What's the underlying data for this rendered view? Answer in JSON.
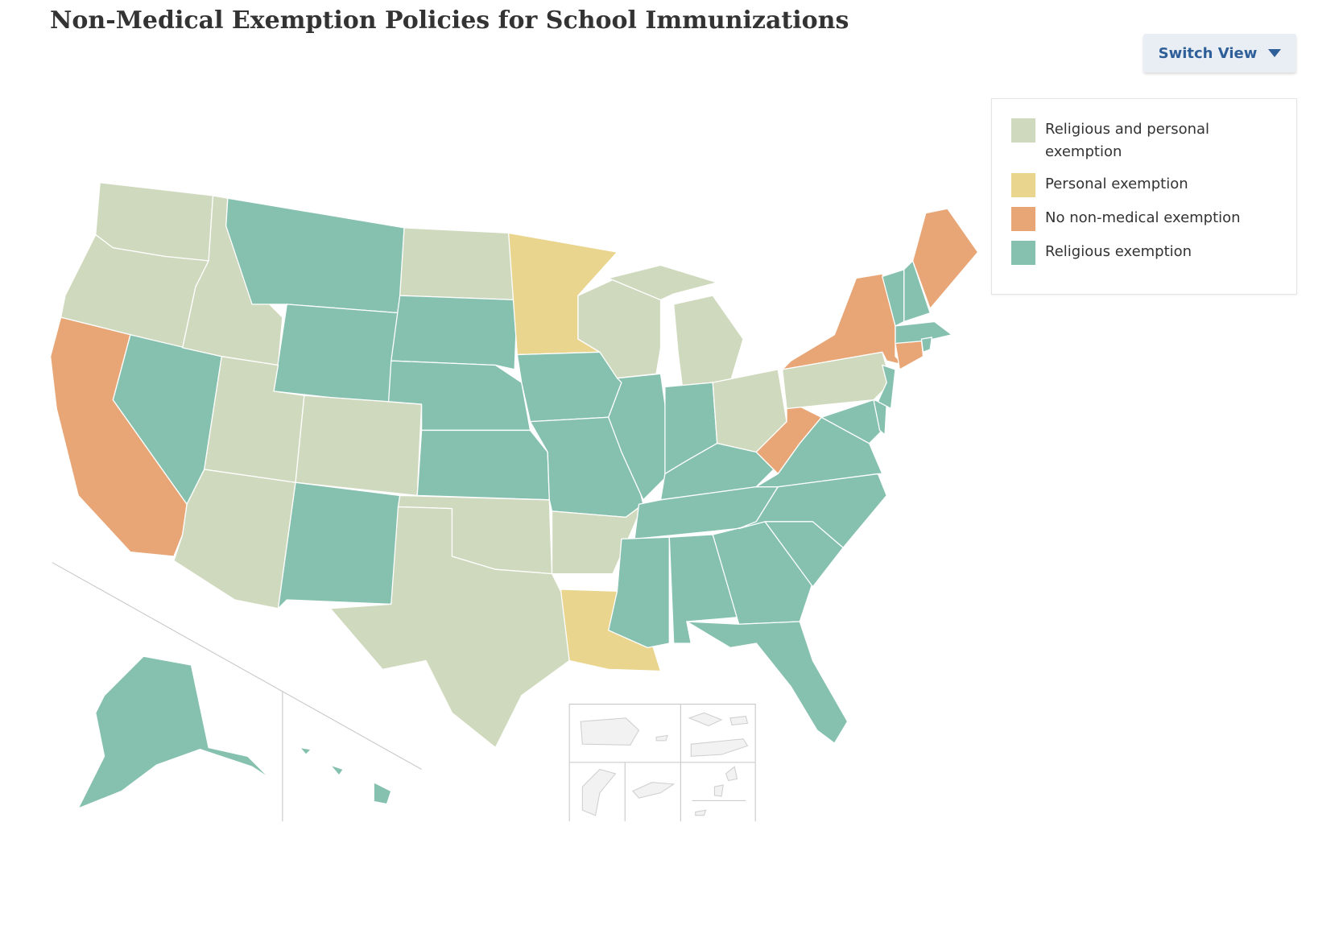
{
  "header": {
    "title": "Non-Medical Exemption Policies for School Immunizations",
    "button": "Switch View"
  },
  "legend": {
    "items": [
      {
        "label": "Religious and personal exemption",
        "color": "#cfd9bd"
      },
      {
        "label": "Personal exemption",
        "color": "#e9d58e"
      },
      {
        "label": "No non-medical exemption",
        "color": "#e8a677"
      },
      {
        "label": "Religious exemption",
        "color": "#85c1ae"
      }
    ]
  },
  "map": {
    "regions": [
      0,
      0,
      2,
      3,
      0,
      3,
      3,
      0,
      0,
      0,
      3,
      0,
      3,
      3,
      3,
      0,
      0,
      1,
      3,
      3,
      0,
      1,
      0,
      3,
      0,
      3,
      0,
      3,
      3,
      3,
      3,
      3,
      3,
      3,
      3,
      3,
      2,
      0,
      2,
      3,
      3,
      3,
      2,
      3,
      3,
      3,
      3,
      2,
      3,
      3
    ]
  }
}
